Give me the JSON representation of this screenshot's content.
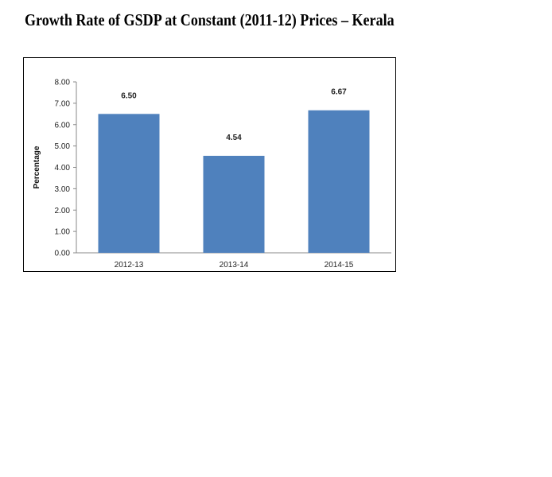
{
  "page": {
    "title": "Growth Rate of GSDP at Constant (2011-12) Prices – Kerala"
  },
  "chart_data": {
    "type": "bar",
    "categories": [
      "2012-13",
      "2013-14",
      "2014-15"
    ],
    "values": [
      6.5,
      4.54,
      6.67
    ],
    "value_labels": [
      "6.50",
      "4.54",
      "6.67"
    ],
    "ylabel": "Percentage",
    "xlabel": "",
    "ylim": [
      0,
      8
    ],
    "yticks": [
      "0.00",
      "1.00",
      "2.00",
      "3.00",
      "4.00",
      "5.00",
      "6.00",
      "7.00",
      "8.00"
    ],
    "grid": false,
    "legend": "none",
    "bar_color": "#4f81bd"
  }
}
